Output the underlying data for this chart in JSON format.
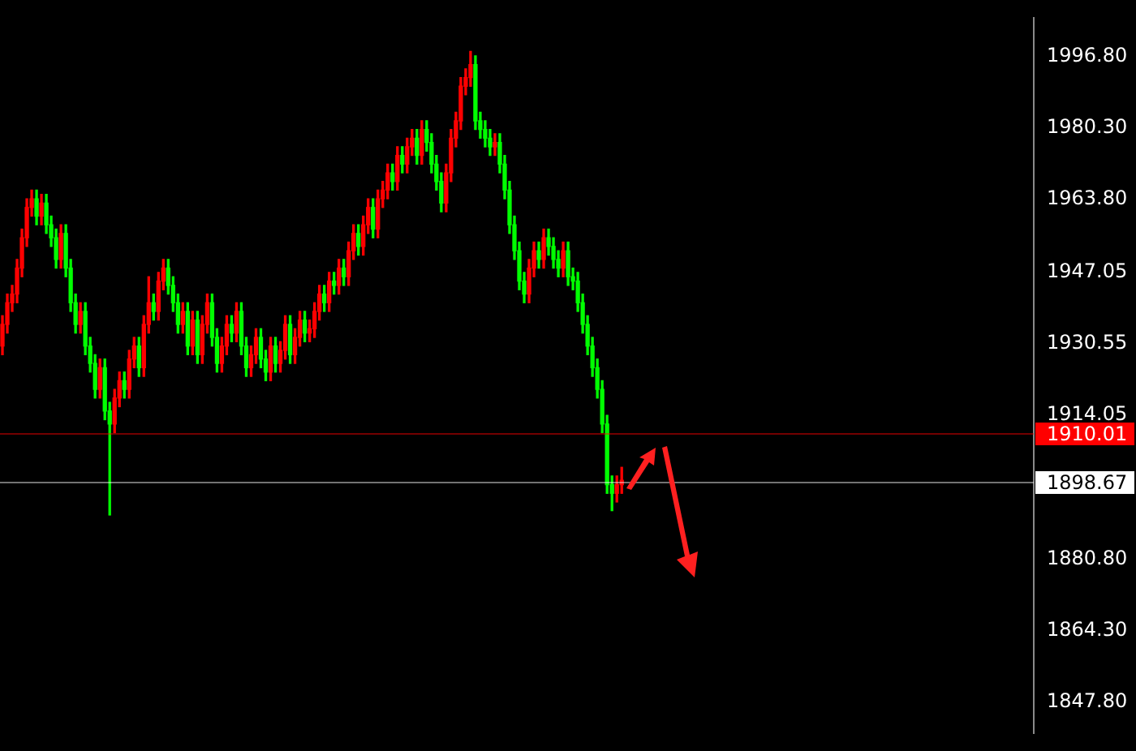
{
  "chart_data": {
    "type": "candlestick",
    "categories": [
      null,
      null,
      null,
      null,
      null,
      null,
      null,
      null,
      null,
      null,
      null,
      null,
      null,
      null,
      null,
      null,
      null,
      null,
      null,
      null,
      null,
      null,
      null,
      null,
      null,
      null,
      null,
      null,
      null,
      null,
      null,
      null,
      null,
      null,
      null,
      null,
      null,
      null,
      null,
      null,
      null,
      null,
      null,
      null,
      null,
      null,
      null,
      null,
      null,
      null,
      null,
      null,
      null,
      null,
      null,
      null,
      null,
      null,
      null,
      null,
      null,
      null,
      null,
      null,
      null,
      null,
      null,
      null,
      null,
      null,
      null,
      null,
      null,
      null,
      null,
      null,
      null,
      null,
      null,
      null,
      null,
      null,
      null,
      null,
      null,
      null,
      null,
      null,
      null,
      null,
      null,
      null,
      null,
      null,
      null,
      null,
      null,
      null,
      null,
      null,
      null,
      null,
      null,
      null,
      null,
      null,
      null,
      null,
      null,
      null,
      null,
      null,
      null,
      null,
      null,
      null,
      null,
      null,
      null,
      null,
      null,
      null,
      null,
      null,
      null,
      null,
      null,
      null,
      null,
      null,
      null,
      null,
      null,
      null,
      null,
      null,
      null,
      null,
      null,
      null,
      null,
      null,
      null,
      null,
      null,
      null,
      null,
      null,
      null,
      null,
      null,
      null,
      null,
      null,
      null,
      null,
      null,
      null,
      null,
      null,
      null,
      null,
      null,
      null,
      null,
      null,
      null,
      null,
      null,
      null,
      null,
      null,
      null,
      null,
      null,
      null,
      null,
      null,
      null,
      null,
      null,
      null,
      null,
      null,
      null,
      null,
      null,
      null,
      null,
      null,
      null,
      null,
      null,
      null,
      null,
      null,
      null,
      null,
      null,
      null,
      null,
      null,
      null,
      null,
      null,
      null,
      null,
      null,
      null,
      null,
      null,
      null
    ],
    "ohlc": [
      [
        1930,
        1937,
        1928,
        1935
      ],
      [
        1935,
        1942,
        1933,
        1940
      ],
      [
        1940,
        1944,
        1938,
        1942
      ],
      [
        1942,
        1950,
        1940,
        1948
      ],
      [
        1948,
        1957,
        1946,
        1955
      ],
      [
        1955,
        1964,
        1953,
        1962
      ],
      [
        1962,
        1966,
        1960,
        1964
      ],
      [
        1964,
        1966,
        1958,
        1960
      ],
      [
        1960,
        1965,
        1958,
        1963
      ],
      [
        1963,
        1965,
        1956,
        1958
      ],
      [
        1958,
        1960,
        1953,
        1955
      ],
      [
        1955,
        1957,
        1948,
        1950
      ],
      [
        1950,
        1958,
        1948,
        1956
      ],
      [
        1956,
        1958,
        1946,
        1948
      ],
      [
        1948,
        1950,
        1938,
        1940
      ],
      [
        1940,
        1942,
        1933,
        1935
      ],
      [
        1935,
        1940,
        1933,
        1938
      ],
      [
        1938,
        1940,
        1928,
        1930
      ],
      [
        1930,
        1932,
        1924,
        1926
      ],
      [
        1926,
        1928,
        1918,
        1920
      ],
      [
        1920,
        1927,
        1918,
        1925
      ],
      [
        1925,
        1927,
        1913,
        1915
      ],
      [
        1915,
        1917,
        1891,
        1912
      ],
      [
        1912,
        1920,
        1910,
        1918
      ],
      [
        1918,
        1924,
        1916,
        1922
      ],
      [
        1922,
        1924,
        1918,
        1920
      ],
      [
        1920,
        1929,
        1918,
        1927
      ],
      [
        1927,
        1932,
        1925,
        1930
      ],
      [
        1930,
        1932,
        1923,
        1925
      ],
      [
        1925,
        1937,
        1923,
        1935
      ],
      [
        1935,
        1946,
        1933,
        1940
      ],
      [
        1940,
        1942,
        1936,
        1938
      ],
      [
        1938,
        1947,
        1936,
        1945
      ],
      [
        1945,
        1950,
        1943,
        1948
      ],
      [
        1948,
        1950,
        1942,
        1944
      ],
      [
        1944,
        1946,
        1938,
        1940
      ],
      [
        1940,
        1942,
        1933,
        1935
      ],
      [
        1935,
        1940,
        1933,
        1938
      ],
      [
        1938,
        1940,
        1928,
        1930
      ],
      [
        1930,
        1938,
        1928,
        1936
      ],
      [
        1936,
        1938,
        1926,
        1928
      ],
      [
        1928,
        1937,
        1926,
        1935
      ],
      [
        1935,
        1942,
        1933,
        1940
      ],
      [
        1940,
        1942,
        1930,
        1932
      ],
      [
        1932,
        1934,
        1924,
        1926
      ],
      [
        1926,
        1932,
        1924,
        1930
      ],
      [
        1930,
        1937,
        1928,
        1935
      ],
      [
        1935,
        1937,
        1931,
        1933
      ],
      [
        1933,
        1940,
        1931,
        1938
      ],
      [
        1938,
        1940,
        1928,
        1930
      ],
      [
        1930,
        1932,
        1923,
        1925
      ],
      [
        1925,
        1930,
        1923,
        1928
      ],
      [
        1928,
        1934,
        1926,
        1932
      ],
      [
        1932,
        1934,
        1925,
        1927
      ],
      [
        1927,
        1929,
        1922,
        1924
      ],
      [
        1924,
        1932,
        1922,
        1930
      ],
      [
        1930,
        1932,
        1924,
        1926
      ],
      [
        1926,
        1931,
        1924,
        1929
      ],
      [
        1929,
        1937,
        1927,
        1935
      ],
      [
        1935,
        1937,
        1926,
        1928
      ],
      [
        1928,
        1934,
        1926,
        1932
      ],
      [
        1932,
        1938,
        1930,
        1936
      ],
      [
        1936,
        1938,
        1931,
        1933
      ],
      [
        1933,
        1936,
        1931,
        1934
      ],
      [
        1934,
        1940,
        1932,
        1938
      ],
      [
        1938,
        1944,
        1936,
        1942
      ],
      [
        1942,
        1944,
        1938,
        1940
      ],
      [
        1940,
        1947,
        1938,
        1945
      ],
      [
        1945,
        1947,
        1942,
        1944
      ],
      [
        1944,
        1950,
        1942,
        1948
      ],
      [
        1948,
        1950,
        1944,
        1946
      ],
      [
        1946,
        1954,
        1944,
        1952
      ],
      [
        1952,
        1958,
        1950,
        1956
      ],
      [
        1956,
        1958,
        1951,
        1953
      ],
      [
        1953,
        1960,
        1951,
        1958
      ],
      [
        1958,
        1964,
        1956,
        1962
      ],
      [
        1962,
        1964,
        1955,
        1957
      ],
      [
        1957,
        1966,
        1955,
        1964
      ],
      [
        1964,
        1968,
        1962,
        1966
      ],
      [
        1966,
        1972,
        1964,
        1970
      ],
      [
        1970,
        1972,
        1966,
        1968
      ],
      [
        1968,
        1976,
        1966,
        1974
      ],
      [
        1974,
        1976,
        1970,
        1972
      ],
      [
        1972,
        1978,
        1970,
        1976
      ],
      [
        1976,
        1980,
        1974,
        1978
      ],
      [
        1978,
        1980,
        1972,
        1974
      ],
      [
        1974,
        1982,
        1972,
        1980
      ],
      [
        1980,
        1982,
        1975,
        1977
      ],
      [
        1977,
        1979,
        1970,
        1972
      ],
      [
        1972,
        1974,
        1966,
        1968
      ],
      [
        1968,
        1970,
        1961,
        1963
      ],
      [
        1963,
        1972,
        1961,
        1970
      ],
      [
        1970,
        1980,
        1968,
        1978
      ],
      [
        1978,
        1984,
        1976,
        1982
      ],
      [
        1982,
        1992,
        1980,
        1990
      ],
      [
        1990,
        1994,
        1988,
        1992
      ],
      [
        1992,
        1998,
        1990,
        1995
      ],
      [
        1995,
        1997,
        1980,
        1982
      ],
      [
        1982,
        1984,
        1978,
        1980
      ],
      [
        1980,
        1982,
        1976,
        1978
      ],
      [
        1978,
        1980,
        1974,
        1976
      ],
      [
        1976,
        1979,
        1974,
        1977
      ],
      [
        1977,
        1979,
        1970,
        1972
      ],
      [
        1972,
        1974,
        1964,
        1966
      ],
      [
        1966,
        1968,
        1956,
        1958
      ],
      [
        1958,
        1960,
        1950,
        1952
      ],
      [
        1952,
        1954,
        1943,
        1945
      ],
      [
        1945,
        1947,
        1940,
        1942
      ],
      [
        1942,
        1950,
        1940,
        1948
      ],
      [
        1948,
        1954,
        1946,
        1952
      ],
      [
        1952,
        1954,
        1948,
        1950
      ],
      [
        1950,
        1957,
        1948,
        1955
      ],
      [
        1955,
        1957,
        1951,
        1953
      ],
      [
        1953,
        1955,
        1948,
        1950
      ],
      [
        1950,
        1952,
        1946,
        1948
      ],
      [
        1948,
        1954,
        1946,
        1952
      ],
      [
        1952,
        1954,
        1944,
        1946
      ],
      [
        1946,
        1948,
        1943,
        1945
      ],
      [
        1945,
        1947,
        1938,
        1940
      ],
      [
        1940,
        1942,
        1933,
        1935
      ],
      [
        1935,
        1937,
        1928,
        1930
      ],
      [
        1930,
        1932,
        1923,
        1925
      ],
      [
        1925,
        1927,
        1918,
        1920
      ],
      [
        1920,
        1922,
        1910,
        1912
      ],
      [
        1912,
        1914,
        1896,
        1898
      ],
      [
        1898,
        1900,
        1892,
        1896
      ],
      [
        1896,
        1900,
        1894,
        1898
      ],
      [
        1898,
        1902,
        1896,
        1899
      ],
      null,
      null,
      null,
      null,
      null,
      null,
      null,
      null,
      null,
      null,
      null,
      null,
      null,
      null,
      null,
      null,
      null,
      null,
      null,
      null,
      null,
      null,
      null,
      null,
      null,
      null,
      null,
      null,
      null,
      null,
      null,
      null,
      null,
      null,
      null,
      null,
      null,
      null,
      null,
      null,
      null,
      null,
      null,
      null,
      null,
      null,
      null,
      null,
      null,
      null,
      null,
      null,
      null,
      null,
      null,
      null,
      null,
      null,
      null,
      null,
      null,
      null,
      null,
      null,
      null,
      null,
      null,
      null,
      null,
      null,
      null,
      null,
      null,
      null,
      null,
      null,
      null,
      null,
      null,
      null,
      null,
      null,
      null,
      null
    ],
    "colors": [
      "#ff0000",
      "#ff0000",
      "#ff0000",
      "#ff0000",
      "#ff0000",
      "#ff0000",
      "#ff0000",
      "#00ff00",
      "#ff0000",
      "#00ff00",
      "#00ff00",
      "#00ff00",
      "#ff0000",
      "#00ff00",
      "#00ff00",
      "#00ff00",
      "#ff0000",
      "#00ff00",
      "#00ff00",
      "#00ff00",
      "#ff0000",
      "#00ff00",
      "#00ff00",
      "#ff0000",
      "#ff0000",
      "#00ff00",
      "#ff0000",
      "#ff0000",
      "#00ff00",
      "#ff0000",
      "#ff0000",
      "#00ff00",
      "#ff0000",
      "#ff0000",
      "#00ff00",
      "#00ff00",
      "#00ff00",
      "#ff0000",
      "#00ff00",
      "#ff0000",
      "#00ff00",
      "#ff0000",
      "#ff0000",
      "#00ff00",
      "#00ff00",
      "#ff0000",
      "#ff0000",
      "#00ff00",
      "#ff0000",
      "#00ff00",
      "#00ff00",
      "#ff0000",
      "#ff0000",
      "#00ff00",
      "#00ff00",
      "#ff0000",
      "#00ff00",
      "#ff0000",
      "#ff0000",
      "#00ff00",
      "#ff0000",
      "#ff0000",
      "#00ff00",
      "#ff0000",
      "#ff0000",
      "#ff0000",
      "#00ff00",
      "#ff0000",
      "#00ff00",
      "#ff0000",
      "#00ff00",
      "#ff0000",
      "#ff0000",
      "#00ff00",
      "#ff0000",
      "#ff0000",
      "#00ff00",
      "#ff0000",
      "#ff0000",
      "#ff0000",
      "#00ff00",
      "#ff0000",
      "#00ff00",
      "#ff0000",
      "#ff0000",
      "#00ff00",
      "#ff0000",
      "#00ff00",
      "#00ff00",
      "#00ff00",
      "#00ff00",
      "#ff0000",
      "#ff0000",
      "#ff0000",
      "#ff0000",
      "#ff0000",
      "#ff0000",
      "#00ff00",
      "#00ff00",
      "#00ff00",
      "#00ff00",
      "#ff0000",
      "#00ff00",
      "#00ff00",
      "#00ff00",
      "#00ff00",
      "#00ff00",
      "#00ff00",
      "#ff0000",
      "#ff0000",
      "#00ff00",
      "#ff0000",
      "#00ff00",
      "#00ff00",
      "#00ff00",
      "#ff0000",
      "#00ff00",
      "#00ff00",
      "#00ff00",
      "#00ff00",
      "#00ff00",
      "#00ff00",
      "#00ff00",
      "#00ff00",
      "#00ff00",
      "#00ff00",
      "#ff0000",
      "#ff0000",
      null,
      null,
      null,
      null,
      null,
      null,
      null,
      null,
      null,
      null,
      null,
      null,
      null,
      null,
      null,
      null,
      null,
      null,
      null,
      null,
      null,
      null,
      null,
      null,
      null,
      null,
      null,
      null,
      null,
      null,
      null,
      null,
      null,
      null,
      null,
      null,
      null,
      null,
      null,
      null,
      null,
      null,
      null,
      null,
      null,
      null,
      null,
      null,
      null,
      null,
      null,
      null,
      null,
      null,
      null,
      null,
      null,
      null,
      null,
      null,
      null,
      null,
      null,
      null,
      null,
      null,
      null,
      null,
      null,
      null,
      null,
      null,
      null,
      null,
      null,
      null,
      null,
      null,
      null,
      null,
      null,
      null,
      null,
      null
    ],
    "ylim": [
      1840.7,
      2005.7
    ],
    "yticks": [
      {
        "value": 1847.8,
        "label": "1847.80"
      },
      {
        "value": 1864.3,
        "label": "1864.30"
      },
      {
        "value": 1880.8,
        "label": "1880.80"
      },
      {
        "value": 1914.05,
        "label": "1914.05"
      },
      {
        "value": 1930.55,
        "label": "1930.55"
      },
      {
        "value": 1947.05,
        "label": "1947.05"
      },
      {
        "value": 1963.8,
        "label": "1963.80"
      },
      {
        "value": 1980.3,
        "label": "1980.30"
      },
      {
        "value": 1996.8,
        "label": "1996.80"
      }
    ],
    "ref_lines": [
      {
        "axis": "y",
        "value": 1910.01,
        "label": "1910.01",
        "color": "#ff0000"
      },
      {
        "axis": "y",
        "value": 1898.67,
        "label": "1898.67",
        "color": "#ffffff"
      }
    ],
    "tick_labels": "y"
  }
}
